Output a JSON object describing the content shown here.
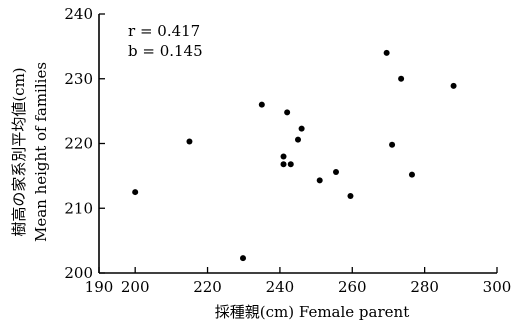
{
  "chart_data": {
    "type": "scatter",
    "title": "",
    "xlabel": "採種親(cm)  Female parent",
    "ylabel_line1": "樹高の家系別平均値(cm)",
    "ylabel_line2": "Mean height of families",
    "xlim": [
      190,
      300
    ],
    "ylim": [
      200,
      240
    ],
    "xticks": [
      190,
      200,
      220,
      240,
      260,
      280,
      300
    ],
    "yticks": [
      200,
      210,
      220,
      230,
      240
    ],
    "grid": false,
    "annotations": {
      "r": "r = 0.417",
      "b": "b = 0.145"
    },
    "points": [
      {
        "x": 200,
        "y": 212.5
      },
      {
        "x": 215,
        "y": 220.3
      },
      {
        "x": 229.8,
        "y": 202.3
      },
      {
        "x": 235,
        "y": 226
      },
      {
        "x": 241,
        "y": 218
      },
      {
        "x": 241,
        "y": 216.8
      },
      {
        "x": 242,
        "y": 224.8
      },
      {
        "x": 243,
        "y": 216.8
      },
      {
        "x": 245,
        "y": 220.6
      },
      {
        "x": 246,
        "y": 222.3
      },
      {
        "x": 251,
        "y": 214.3
      },
      {
        "x": 255.5,
        "y": 215.6
      },
      {
        "x": 259.5,
        "y": 211.9
      },
      {
        "x": 269.5,
        "y": 234
      },
      {
        "x": 271,
        "y": 219.8
      },
      {
        "x": 273.5,
        "y": 230
      },
      {
        "x": 276.5,
        "y": 215.2
      },
      {
        "x": 288,
        "y": 228.9
      }
    ]
  }
}
